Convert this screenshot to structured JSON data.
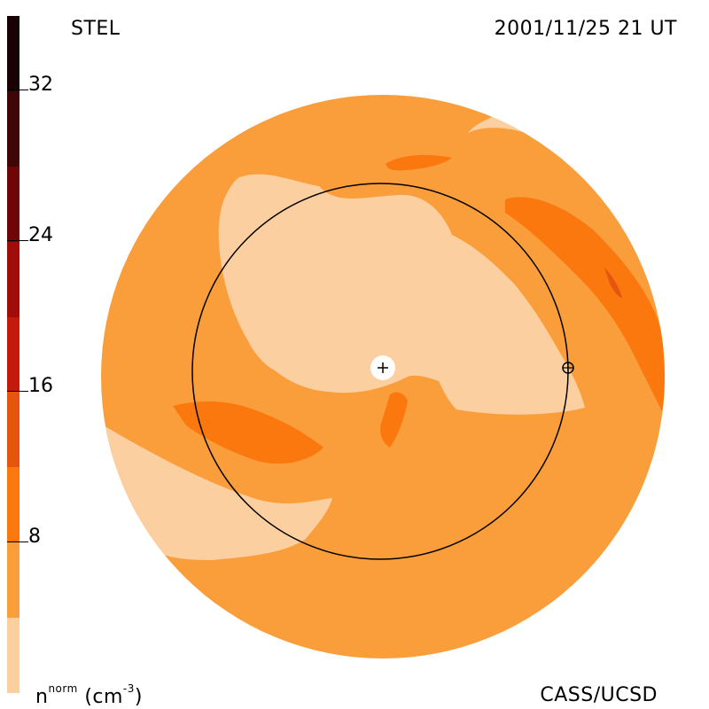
{
  "header": {
    "left_title": "STEL",
    "right_title": "2001/11/25 21 UT"
  },
  "footer": {
    "unit_base": "n",
    "unit_sup": "norm",
    "unit_paren_open": "(cm",
    "unit_exp": "-3",
    "unit_paren_close": ")",
    "credit": "CASS/UCSD"
  },
  "colorbar": {
    "ticks": [
      "8",
      "16",
      "24",
      "32"
    ],
    "levels": [
      {
        "range": "0-4",
        "color": "#fbcfa0"
      },
      {
        "range": "4-8",
        "color": "#fa9e3b"
      },
      {
        "range": "8-12",
        "color": "#fa780d"
      },
      {
        "range": "12-16",
        "color": "#e55510"
      },
      {
        "range": "16-20",
        "color": "#c41a0e"
      },
      {
        "range": "20-24",
        "color": "#a00c07"
      },
      {
        "range": "24-28",
        "color": "#6e0506"
      },
      {
        "range": "28-32",
        "color": "#400507"
      },
      {
        "range": "32-36",
        "color": "#180203"
      }
    ]
  },
  "map": {
    "projection": "polar view of solar wind density",
    "markers": [
      {
        "name": "sun",
        "symbol": "+"
      },
      {
        "name": "earth",
        "symbol": "⊕"
      }
    ]
  }
}
